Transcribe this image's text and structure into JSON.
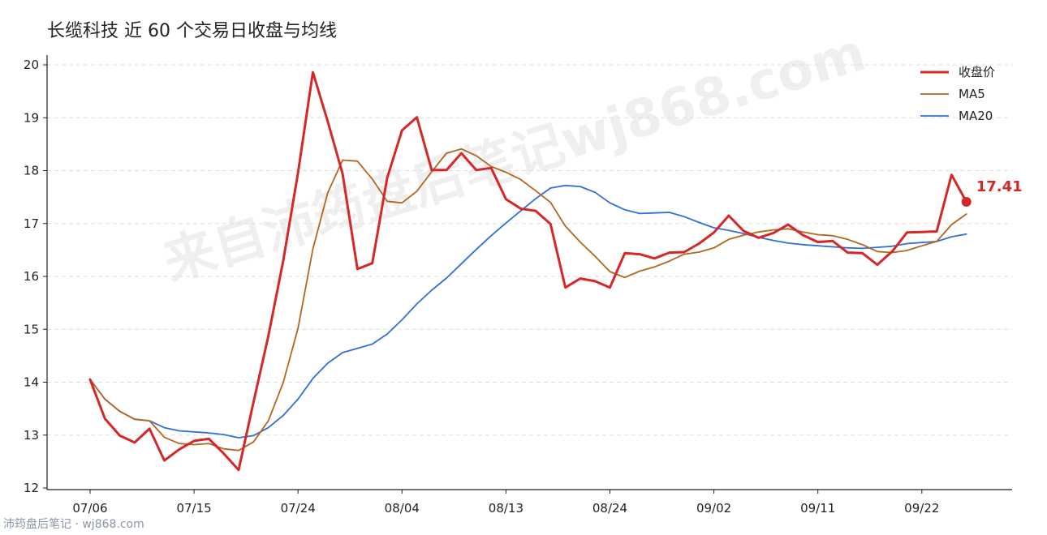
{
  "title": "长缆科技 近 60 个交易日收盘与均线",
  "watermark": "来自沛筠盘后笔记wj868.com",
  "footer": "沛筠盘后笔记 · wj868.com",
  "colors": {
    "close": "#d62728",
    "ma5": "#b5651d",
    "ma20": "#2f6fdb",
    "grid": "#dddddd",
    "axis": "#222222"
  },
  "legend": {
    "placement": "top-right",
    "items": [
      {
        "key": "close",
        "label": "收盘价"
      },
      {
        "key": "ma5",
        "label": "MA5"
      },
      {
        "key": "ma20",
        "label": "MA20"
      }
    ]
  },
  "chart_data": {
    "type": "line",
    "xlabel": "",
    "ylabel": "",
    "ylim": [
      12,
      20
    ],
    "y_ticks": [
      12,
      13,
      14,
      15,
      16,
      17,
      18,
      19,
      20
    ],
    "x_ticks": [
      {
        "label": "07/06",
        "index": 0
      },
      {
        "label": "07/15",
        "index": 7
      },
      {
        "label": "07/24",
        "index": 14
      },
      {
        "label": "08/04",
        "index": 21
      },
      {
        "label": "08/13",
        "index": 28
      },
      {
        "label": "08/24",
        "index": 35
      },
      {
        "label": "09/02",
        "index": 42
      },
      {
        "label": "09/11",
        "index": 49
      },
      {
        "label": "09/22",
        "index": 56
      }
    ],
    "grid": "horizontal dashed",
    "series": [
      {
        "key": "close",
        "name": "收盘价",
        "values": [
          14.05,
          13.31,
          12.99,
          12.86,
          13.12,
          12.52,
          12.73,
          12.89,
          12.93,
          12.65,
          12.34,
          13.62,
          14.87,
          16.29,
          17.96,
          19.86,
          18.93,
          17.94,
          16.14,
          16.25,
          17.86,
          18.76,
          19.01,
          18.01,
          18.01,
          18.33,
          18.01,
          18.05,
          17.46,
          17.28,
          17.24,
          16.99,
          15.79,
          15.96,
          15.91,
          15.79,
          16.44,
          16.42,
          16.34,
          16.45,
          16.46,
          16.62,
          16.83,
          17.15,
          16.86,
          16.73,
          16.82,
          16.98,
          16.78,
          16.65,
          16.67,
          16.45,
          16.44,
          16.22,
          16.47,
          16.83,
          16.84,
          16.85,
          17.92,
          17.41
        ]
      },
      {
        "key": "ma5",
        "name": "MA5",
        "values": [
          14.05,
          13.68,
          13.45,
          13.3,
          13.27,
          12.96,
          12.84,
          12.82,
          12.84,
          12.74,
          12.71,
          12.87,
          13.27,
          13.99,
          15.02,
          16.52,
          17.58,
          18.2,
          18.18,
          17.84,
          17.42,
          17.39,
          17.61,
          17.98,
          18.33,
          18.41,
          18.28,
          18.08,
          17.97,
          17.83,
          17.62,
          17.4,
          16.95,
          16.65,
          16.38,
          16.09,
          15.98,
          16.1,
          16.18,
          16.29,
          16.42,
          16.46,
          16.54,
          16.7,
          16.78,
          16.84,
          16.88,
          16.9,
          16.84,
          16.79,
          16.77,
          16.7,
          16.6,
          16.47,
          16.45,
          16.49,
          16.58,
          16.66,
          16.98,
          17.18
        ]
      },
      {
        "key": "ma20",
        "name": "MA20",
        "values": [
          14.05,
          13.68,
          13.45,
          13.3,
          13.27,
          13.14,
          13.08,
          13.06,
          13.04,
          13.01,
          12.95,
          12.99,
          13.14,
          13.37,
          13.68,
          14.07,
          14.36,
          14.56,
          14.64,
          14.72,
          14.91,
          15.18,
          15.48,
          15.74,
          15.97,
          16.24,
          16.51,
          16.77,
          17.01,
          17.24,
          17.47,
          17.67,
          17.72,
          17.7,
          17.59,
          17.39,
          17.26,
          17.19,
          17.2,
          17.21,
          17.13,
          17.02,
          16.92,
          16.87,
          16.81,
          16.74,
          16.68,
          16.63,
          16.6,
          16.58,
          16.56,
          16.54,
          16.53,
          16.55,
          16.57,
          16.62,
          16.64,
          16.66,
          16.75,
          16.8
        ]
      }
    ],
    "last_point": {
      "series": "close",
      "value": "17.41"
    }
  }
}
